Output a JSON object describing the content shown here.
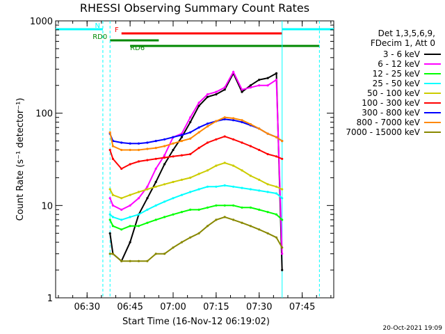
{
  "chart_data": {
    "type": "line",
    "title": "RHESSI Observing Summary Count Rates",
    "xlabel": "Start Time (16-Nov-12 06:19:02)",
    "ylabel": "Count Rate (s⁻¹ detector⁻¹)",
    "yscale": "log",
    "ylim": [
      1,
      1000
    ],
    "xlim": [
      "06:19:02",
      "07:56:00"
    ],
    "x_ticks": [
      "06:30",
      "06:45",
      "07:00",
      "07:15",
      "07:30",
      "07:45"
    ],
    "y_ticks": [
      "1",
      "10",
      "100",
      "1000"
    ],
    "grid": false,
    "legend_position": "right",
    "legend_header": [
      "Det 1,3,5,6,9,",
      "FDecim 1, Att 0"
    ],
    "footer_timestamp": "20-Oct-2021 19:09",
    "x_sample_times": [
      "06:38",
      "06:39",
      "06:42",
      "06:45",
      "06:48",
      "06:51",
      "06:54",
      "06:57",
      "07:00",
      "07:03",
      "07:06",
      "07:09",
      "07:12",
      "07:15",
      "07:18",
      "07:21",
      "07:24",
      "07:27",
      "07:30",
      "07:33",
      "07:36",
      "07:38"
    ],
    "series": [
      {
        "name": "3 - 6 keV",
        "color": "#000000",
        "values": [
          5,
          3,
          2.5,
          4,
          8,
          12,
          18,
          28,
          40,
          55,
          80,
          120,
          150,
          160,
          180,
          270,
          170,
          200,
          230,
          240,
          270,
          2
        ]
      },
      {
        "name": "6 - 12 keV",
        "color": "#ff00ff",
        "values": [
          12,
          10,
          9,
          10,
          12,
          16,
          25,
          35,
          55,
          60,
          90,
          130,
          160,
          170,
          190,
          280,
          180,
          190,
          200,
          200,
          230,
          3
        ]
      },
      {
        "name": "12 - 25 keV",
        "color": "#00ff00",
        "values": [
          7,
          6,
          5.5,
          6,
          6,
          6.5,
          7,
          7.5,
          8,
          8.5,
          9,
          9,
          9.5,
          10,
          10,
          10,
          9.5,
          9.5,
          9,
          8.5,
          8,
          7
        ]
      },
      {
        "name": "25 - 50 keV",
        "color": "#00ffff",
        "values": [
          8,
          7.5,
          7,
          7.5,
          8,
          9,
          10,
          11,
          12,
          13,
          14,
          15,
          16,
          16,
          16.5,
          16,
          15.5,
          15,
          14.5,
          14,
          13.5,
          12
        ]
      },
      {
        "name": "50 - 100 keV",
        "color": "#cccc00",
        "values": [
          15,
          13,
          12,
          13,
          14,
          15,
          16,
          17,
          18,
          19,
          20,
          22,
          24,
          27,
          29,
          27,
          24,
          21,
          19,
          17,
          16,
          15
        ]
      },
      {
        "name": "100 - 300 keV",
        "color": "#ff0000",
        "values": [
          40,
          32,
          25,
          28,
          30,
          31,
          32,
          33,
          34,
          35,
          36,
          42,
          48,
          52,
          56,
          52,
          48,
          44,
          40,
          36,
          34,
          32
        ]
      },
      {
        "name": "300 - 800 keV",
        "color": "#0000ff",
        "values": [
          60,
          50,
          48,
          47,
          47,
          48,
          50,
          52,
          55,
          58,
          62,
          70,
          77,
          82,
          86,
          84,
          80,
          74,
          68,
          60,
          55,
          50
        ]
      },
      {
        "name": "800 - 7000 keV",
        "color": "#ff8800",
        "values": [
          62,
          44,
          40,
          40,
          40,
          41,
          42,
          44,
          47,
          50,
          53,
          62,
          72,
          82,
          90,
          88,
          84,
          76,
          68,
          60,
          55,
          50
        ]
      },
      {
        "name": "7000 - 15000 keV",
        "color": "#888800",
        "values": [
          3,
          3,
          2.5,
          2.5,
          2.5,
          2.5,
          3,
          3,
          3.5,
          4,
          4.5,
          5,
          6,
          7,
          7.5,
          7,
          6.5,
          6,
          5.5,
          5,
          4.5,
          3.5
        ]
      }
    ],
    "annotations": [
      {
        "label": "N",
        "color": "#00ffff",
        "start": "06:19:02",
        "end": "06:35:30"
      },
      {
        "label": "",
        "color": "#00ffff",
        "start": "07:38:00",
        "end": "07:56:00"
      },
      {
        "label": "F",
        "color": "#ff0000",
        "start": "06:42:00",
        "end": "07:38:00"
      },
      {
        "label": "RD0",
        "color": "#008800",
        "start": "06:38:00",
        "end": "06:55:00"
      },
      {
        "label": "RD6",
        "color": "#008800",
        "start": "06:45:00",
        "end": "07:51:00"
      }
    ]
  }
}
